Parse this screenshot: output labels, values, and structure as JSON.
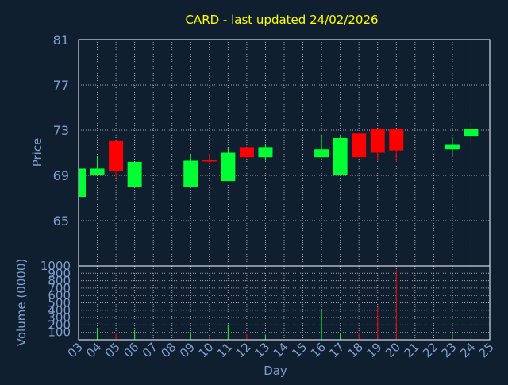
{
  "title": "CARD - last updated 24/02/2026",
  "colors": {
    "background": "#0f1f30",
    "title": "#ffff00",
    "axis_text": "#7f9fcf",
    "axis_line": "#ffffff",
    "grid": "#aaaaaa",
    "up": "#00ff33",
    "down": "#ff0000",
    "doji": "#ff0000"
  },
  "chart_data": [
    {
      "type": "candlestick",
      "ylabel": "Price",
      "ylim": [
        61,
        81
      ],
      "yticks": [
        65,
        69,
        73,
        77,
        81
      ],
      "grid": true,
      "x_categories": [
        "03",
        "04",
        "05",
        "06",
        "07",
        "08",
        "09",
        "10",
        "11",
        "12",
        "13",
        "14",
        "15",
        "16",
        "17",
        "18",
        "19",
        "20",
        "21",
        "22",
        "23",
        "24",
        "25"
      ],
      "candles": [
        {
          "day": "03",
          "open": 67.1,
          "close": 69.6,
          "high": 69.6,
          "low": 67.1
        },
        {
          "day": "04",
          "open": 69.0,
          "close": 69.6,
          "high": 70.7,
          "low": 69.0
        },
        {
          "day": "05",
          "open": 72.1,
          "close": 69.4,
          "high": 72.1,
          "low": 68.8
        },
        {
          "day": "06",
          "open": 68.0,
          "close": 70.2,
          "high": 70.2,
          "low": 68.0
        },
        {
          "day": "09",
          "open": 68.0,
          "close": 70.3,
          "high": 70.9,
          "low": 68.0
        },
        {
          "day": "10",
          "open": 70.3,
          "close": 70.3,
          "high": 70.9,
          "low": 69.9
        },
        {
          "day": "11",
          "open": 68.5,
          "close": 71.0,
          "high": 71.5,
          "low": 68.5
        },
        {
          "day": "12",
          "open": 71.5,
          "close": 70.6,
          "high": 71.5,
          "low": 70.6
        },
        {
          "day": "13",
          "open": 70.6,
          "close": 71.5,
          "high": 71.7,
          "low": 70.3
        },
        {
          "day": "16",
          "open": 70.6,
          "close": 71.3,
          "high": 72.6,
          "low": 70.6
        },
        {
          "day": "17",
          "open": 69.0,
          "close": 72.3,
          "high": 72.5,
          "low": 69.0
        },
        {
          "day": "18",
          "open": 72.7,
          "close": 70.6,
          "high": 72.7,
          "low": 70.6
        },
        {
          "day": "19",
          "open": 73.1,
          "close": 71.0,
          "high": 73.1,
          "low": 70.3
        },
        {
          "day": "20",
          "open": 73.1,
          "close": 71.2,
          "high": 73.1,
          "low": 70.2
        },
        {
          "day": "23",
          "open": 71.3,
          "close": 71.7,
          "high": 72.3,
          "low": 70.7
        },
        {
          "day": "24",
          "open": 72.5,
          "close": 73.1,
          "high": 73.7,
          "low": 71.7
        }
      ]
    },
    {
      "type": "bar",
      "ylabel": "Volume (0000)",
      "xlabel": "Day",
      "ylim": [
        0,
        1000
      ],
      "yticks": [
        100,
        200,
        300,
        400,
        500,
        600,
        700,
        800,
        900,
        1000
      ],
      "grid": true,
      "x_categories": [
        "03",
        "04",
        "05",
        "06",
        "07",
        "08",
        "09",
        "10",
        "11",
        "12",
        "13",
        "14",
        "15",
        "16",
        "17",
        "18",
        "19",
        "20",
        "21",
        "22",
        "23",
        "24",
        "25"
      ],
      "bars": [
        {
          "day": "04",
          "value": 140,
          "direction": "up"
        },
        {
          "day": "05",
          "value": 90,
          "direction": "down"
        },
        {
          "day": "06",
          "value": 120,
          "direction": "up"
        },
        {
          "day": "09",
          "value": 90,
          "direction": "up"
        },
        {
          "day": "10",
          "value": 30,
          "direction": "down"
        },
        {
          "day": "11",
          "value": 210,
          "direction": "up"
        },
        {
          "day": "12",
          "value": 80,
          "direction": "down"
        },
        {
          "day": "13",
          "value": 70,
          "direction": "up"
        },
        {
          "day": "16",
          "value": 420,
          "direction": "up"
        },
        {
          "day": "17",
          "value": 90,
          "direction": "up"
        },
        {
          "day": "18",
          "value": 90,
          "direction": "down"
        },
        {
          "day": "19",
          "value": 440,
          "direction": "down"
        },
        {
          "day": "20",
          "value": 950,
          "direction": "down"
        },
        {
          "day": "23",
          "value": 110,
          "direction": "up"
        },
        {
          "day": "24",
          "value": 110,
          "direction": "up"
        }
      ]
    }
  ]
}
